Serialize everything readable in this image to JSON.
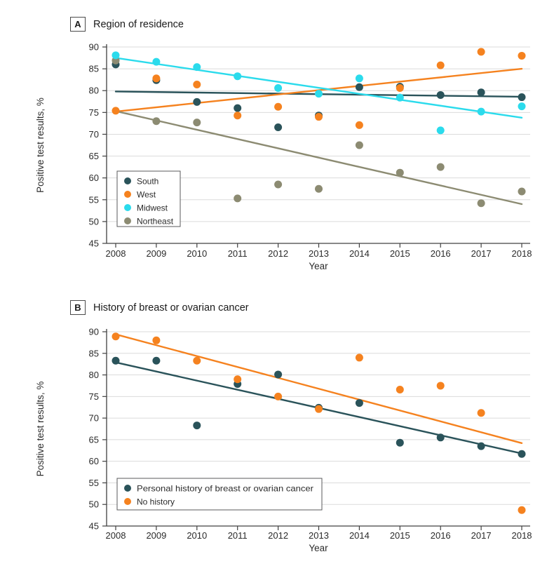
{
  "figure": {
    "panels": [
      {
        "tag": "A",
        "title": "Region of residence"
      },
      {
        "tag": "B",
        "title": "History of breast or ovarian cancer"
      }
    ]
  },
  "colors": {
    "south_teal": "#2A535A",
    "west_orange": "#F5821F",
    "midwest_cyan": "#2BDBEC",
    "northeast_olive": "#8C8B72",
    "gridline": "#DBDBDB",
    "axis": "#404040",
    "text": "#2B2B2B",
    "legend_border": "#58595B"
  },
  "chart_data": [
    {
      "panel": "A",
      "type": "scatter",
      "title": "Region of residence",
      "xlabel": "Year",
      "ylabel": "Positive test results, %",
      "ylim": [
        45,
        90
      ],
      "yticks": [
        45,
        50,
        55,
        60,
        65,
        70,
        75,
        80,
        85,
        90
      ],
      "grid": "horizontal",
      "legend_position": "lower-left",
      "x": [
        2008,
        2009,
        2010,
        2011,
        2012,
        2013,
        2014,
        2015,
        2016,
        2017,
        2018
      ],
      "series": [
        {
          "name": "South",
          "color": "#2A535A",
          "values": [
            86.0,
            82.4,
            77.4,
            76.0,
            71.6,
            74.3,
            80.8,
            80.9,
            79.0,
            79.6,
            78.5
          ],
          "trend": [
            79.8,
            78.6
          ]
        },
        {
          "name": "West",
          "color": "#F5821F",
          "values": [
            75.4,
            82.8,
            81.4,
            74.3,
            76.3,
            74.0,
            72.1,
            80.6,
            85.8,
            88.9,
            88.0
          ],
          "trend": [
            75.2,
            85.0
          ]
        },
        {
          "name": "Midwest",
          "color": "#2BDBEC",
          "values": [
            88.1,
            86.6,
            85.4,
            83.3,
            80.6,
            79.3,
            82.8,
            78.4,
            70.9,
            75.2,
            76.4
          ],
          "trend": [
            87.5,
            73.8
          ]
        },
        {
          "name": "Northeast",
          "color": "#8C8B72",
          "values": [
            86.9,
            73.0,
            72.7,
            55.3,
            58.5,
            57.5,
            67.5,
            61.2,
            62.5,
            54.2,
            56.9
          ],
          "trend": [
            75.3,
            54.0
          ]
        }
      ]
    },
    {
      "panel": "B",
      "type": "scatter",
      "title": "History of breast or ovarian cancer",
      "xlabel": "Year",
      "ylabel": "Positive test results, %",
      "ylim": [
        45,
        90
      ],
      "yticks": [
        45,
        50,
        55,
        60,
        65,
        70,
        75,
        80,
        85,
        90
      ],
      "grid": "horizontal",
      "legend_position": "lower-left",
      "x": [
        2008,
        2009,
        2010,
        2011,
        2012,
        2013,
        2014,
        2015,
        2016,
        2017,
        2018
      ],
      "series": [
        {
          "name": "Personal history of breast or ovarian cancer",
          "color": "#2A535A",
          "values": [
            83.3,
            83.3,
            68.3,
            77.9,
            80.1,
            72.4,
            73.5,
            64.3,
            65.5,
            63.5,
            61.7
          ],
          "trend": [
            82.9,
            61.8
          ]
        },
        {
          "name": "No history",
          "color": "#F5821F",
          "values": [
            88.9,
            88.0,
            83.3,
            79.0,
            75.0,
            72.1,
            84.0,
            76.6,
            77.5,
            71.2,
            48.7
          ],
          "trend": [
            89.4,
            64.2
          ]
        }
      ]
    }
  ]
}
